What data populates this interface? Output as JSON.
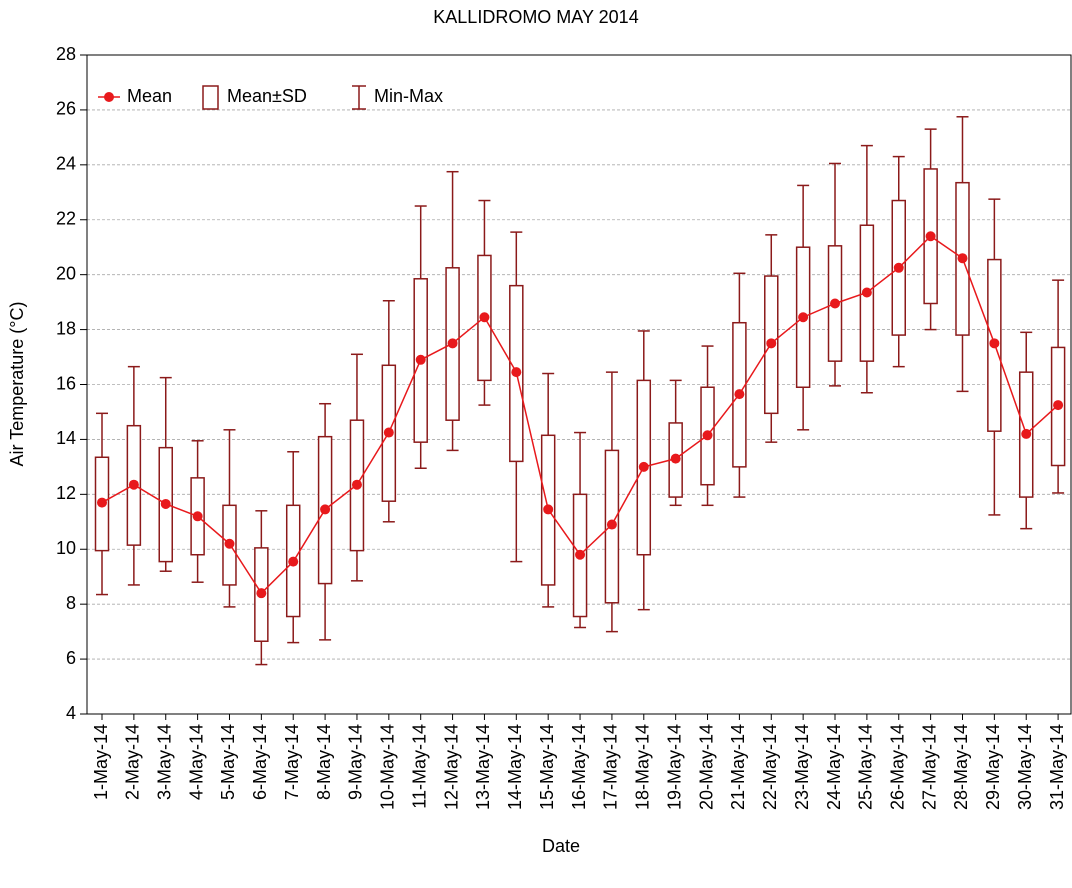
{
  "chart_data": {
    "type": "box",
    "title": "KALLIDROMO MAY 2014",
    "x_label": "Date",
    "y_label": "Air Temperature (°C)",
    "categories": [
      "1-May-14",
      "2-May-14",
      "3-May-14",
      "4-May-14",
      "5-May-14",
      "6-May-14",
      "7-May-14",
      "8-May-14",
      "9-May-14",
      "10-May-14",
      "11-May-14",
      "12-May-14",
      "13-May-14",
      "14-May-14",
      "15-May-14",
      "16-May-14",
      "17-May-14",
      "18-May-14",
      "19-May-14",
      "20-May-14",
      "21-May-14",
      "22-May-14",
      "23-May-14",
      "24-May-14",
      "25-May-14",
      "26-May-14",
      "27-May-14",
      "28-May-14",
      "29-May-14",
      "30-May-14",
      "31-May-14"
    ],
    "series": [
      {
        "name": "Mean",
        "color": "#e8191c",
        "values": [
          11.7,
          12.35,
          11.65,
          11.2,
          10.2,
          8.4,
          9.55,
          11.45,
          12.35,
          14.25,
          16.9,
          17.5,
          18.45,
          16.45,
          11.45,
          9.8,
          10.9,
          13.0,
          13.3,
          14.15,
          15.65,
          17.5,
          18.45,
          18.95,
          19.35,
          20.25,
          21.4,
          20.6,
          17.5,
          14.2,
          15.25
        ]
      },
      {
        "name": "Mean±SD",
        "color": "#8b1a1a",
        "low": [
          9.95,
          10.15,
          9.55,
          9.8,
          8.7,
          6.65,
          7.55,
          8.75,
          9.95,
          11.75,
          13.9,
          14.7,
          16.15,
          13.2,
          8.7,
          7.55,
          8.05,
          9.8,
          11.9,
          12.35,
          13.0,
          14.95,
          15.9,
          16.85,
          16.85,
          17.8,
          18.95,
          17.8,
          14.3,
          11.9,
          13.05
        ],
        "high": [
          13.35,
          14.5,
          13.7,
          12.6,
          11.6,
          10.05,
          11.6,
          14.1,
          14.7,
          16.7,
          19.85,
          20.25,
          20.7,
          19.6,
          14.15,
          12.0,
          13.6,
          16.15,
          14.6,
          15.9,
          18.25,
          19.95,
          21.0,
          21.05,
          21.8,
          22.7,
          23.85,
          23.35,
          20.55,
          16.45,
          17.35
        ]
      },
      {
        "name": "Min-Max",
        "color": "#8b1a1a",
        "low": [
          8.35,
          8.7,
          9.2,
          8.8,
          7.9,
          5.8,
          6.6,
          6.7,
          8.85,
          11.0,
          12.95,
          13.6,
          15.25,
          9.55,
          7.9,
          7.15,
          7.0,
          7.8,
          11.6,
          11.6,
          11.9,
          13.9,
          14.35,
          15.95,
          15.7,
          16.65,
          18.0,
          15.75,
          11.25,
          10.75,
          12.05
        ],
        "high": [
          14.95,
          16.65,
          16.25,
          13.95,
          14.35,
          11.4,
          13.55,
          15.3,
          17.1,
          19.05,
          22.5,
          23.75,
          22.7,
          21.55,
          16.4,
          14.25,
          16.45,
          17.95,
          16.15,
          17.4,
          20.05,
          21.45,
          23.25,
          24.05,
          24.7,
          24.3,
          25.3,
          25.75,
          22.75,
          17.9,
          19.8
        ]
      }
    ],
    "ylim": [
      4,
      28
    ],
    "yticks": [
      4,
      6,
      8,
      10,
      12,
      14,
      16,
      18,
      20,
      22,
      24,
      26,
      28
    ],
    "grid": true
  }
}
